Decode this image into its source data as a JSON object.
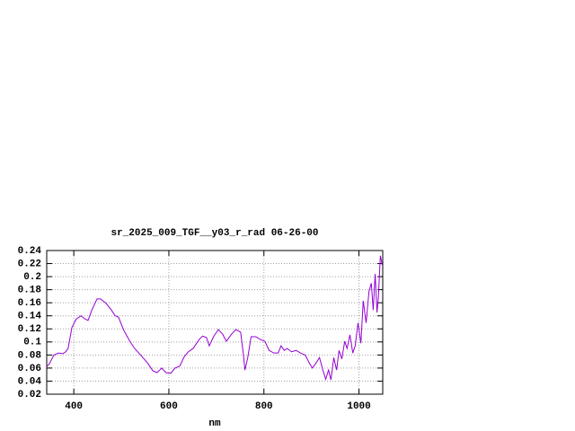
{
  "chart_data": {
    "type": "line",
    "title": "sr_2025_009_TGF__y03_r_rad 06-26-00",
    "x_label": "nm",
    "x": [
      343,
      349,
      358,
      368,
      377,
      383,
      388,
      396,
      405,
      415,
      424,
      430,
      438,
      449,
      456,
      468,
      479,
      487,
      494,
      505,
      518,
      528,
      543,
      556,
      566,
      575,
      585,
      594,
      604,
      613,
      623,
      632,
      641,
      651,
      664,
      671,
      679,
      685,
      694,
      704,
      713,
      721,
      732,
      741,
      751,
      757,
      760,
      766,
      773,
      783,
      792,
      802,
      811,
      821,
      830,
      836,
      843,
      849,
      858,
      868,
      877,
      887,
      896,
      902,
      909,
      917,
      924,
      930,
      936,
      941,
      947,
      953,
      958,
      964,
      970,
      975,
      981,
      987,
      992,
      998,
      1004,
      1009,
      1015,
      1021,
      1026,
      1030,
      1034,
      1038,
      1041,
      1045,
      1049
    ],
    "series": [
      {
        "color": "#9400d3",
        "values": [
          0.062,
          0.067,
          0.08,
          0.083,
          0.082,
          0.085,
          0.09,
          0.122,
          0.135,
          0.14,
          0.135,
          0.133,
          0.149,
          0.166,
          0.166,
          0.159,
          0.149,
          0.14,
          0.138,
          0.118,
          0.101,
          0.09,
          0.078,
          0.067,
          0.056,
          0.053,
          0.06,
          0.053,
          0.052,
          0.06,
          0.063,
          0.077,
          0.085,
          0.09,
          0.104,
          0.109,
          0.107,
          0.094,
          0.108,
          0.119,
          0.112,
          0.101,
          0.112,
          0.119,
          0.115,
          0.08,
          0.057,
          0.076,
          0.108,
          0.108,
          0.104,
          0.101,
          0.087,
          0.083,
          0.083,
          0.094,
          0.087,
          0.09,
          0.085,
          0.087,
          0.083,
          0.08,
          0.067,
          0.06,
          0.067,
          0.076,
          0.057,
          0.043,
          0.057,
          0.042,
          0.076,
          0.057,
          0.087,
          0.074,
          0.101,
          0.09,
          0.111,
          0.083,
          0.094,
          0.129,
          0.098,
          0.163,
          0.129,
          0.177,
          0.19,
          0.149,
          0.204,
          0.145,
          0.17,
          0.232,
          0.218
        ]
      }
    ],
    "xlim": [
      343,
      1050
    ],
    "ylim": [
      0.02,
      0.24
    ],
    "xticks": [
      400,
      600,
      800,
      1000
    ],
    "yticks": [
      0.02,
      0.04,
      0.06,
      0.08,
      0.1,
      0.12,
      0.14,
      0.16,
      0.18,
      0.2,
      0.22,
      0.24
    ],
    "grid": true
  }
}
